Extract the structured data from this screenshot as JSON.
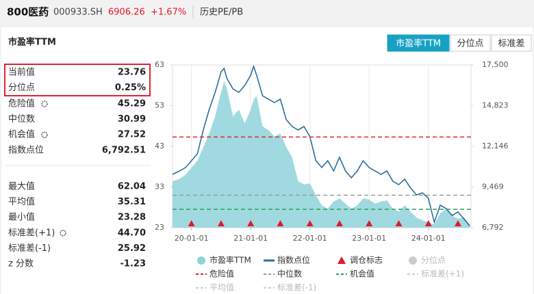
{
  "header": {
    "name": "800医药",
    "code": "000933.SH",
    "price": "6906.26",
    "change": "+1.67%",
    "section": "历史PE/PB"
  },
  "panel_title": "市盈率TTM",
  "tabs": [
    "市盈率TTM",
    "分位点",
    "标准差"
  ],
  "active_tab": 0,
  "stats": [
    {
      "highlight": true,
      "rows": [
        {
          "label": "当前值",
          "value": 23.76
        },
        {
          "label": "分位点",
          "value": "0.25%"
        }
      ]
    },
    {
      "rows": [
        {
          "label": "危险值",
          "value": 45.29,
          "gear": true
        },
        {
          "label": "中位数",
          "value": 30.99
        },
        {
          "label": "机会值",
          "value": 27.52,
          "gear": true
        },
        {
          "label": "指数点位",
          "value": "6,792.51"
        }
      ]
    },
    {
      "rows": [
        {
          "label": "最大值",
          "value": 62.04
        },
        {
          "label": "平均值",
          "value": 35.31
        },
        {
          "label": "最小值",
          "value": 23.28
        },
        {
          "label": "标准差(+1)",
          "value": "44.70",
          "gear": true
        },
        {
          "label": "标准差(-1)",
          "value": 25.92
        },
        {
          "label": "z 分数",
          "value": -1.23
        }
      ]
    }
  ],
  "chart_data": {
    "type": "line",
    "x": [
      2019.68,
      2019.8,
      2019.9,
      2020.0,
      2020.1,
      2020.2,
      2020.3,
      2020.4,
      2020.5,
      2020.55,
      2020.6,
      2020.7,
      2020.8,
      2020.9,
      2021.0,
      2021.05,
      2021.1,
      2021.2,
      2021.3,
      2021.4,
      2021.5,
      2021.6,
      2021.7,
      2021.8,
      2021.9,
      2022.0,
      2022.1,
      2022.2,
      2022.3,
      2022.4,
      2022.5,
      2022.6,
      2022.7,
      2022.8,
      2022.9,
      2023.0,
      2023.1,
      2023.2,
      2023.3,
      2023.4,
      2023.5,
      2023.6,
      2023.7,
      2023.8,
      2023.9,
      2024.0,
      2024.1,
      2024.2,
      2024.3,
      2024.4,
      2024.5,
      2024.6,
      2024.7
    ],
    "series": [
      {
        "name": "市盈率TTM",
        "color": "#8fd3da",
        "fill": true,
        "values": [
          34.4,
          35,
          36,
          37.8,
          39.5,
          42.8,
          46.2,
          50.4,
          56.3,
          59.1,
          57.1,
          50.4,
          52,
          48.7,
          52,
          54.5,
          55.4,
          47.9,
          47,
          45.4,
          46.2,
          42.8,
          40.3,
          34.4,
          33.6,
          33.9,
          31,
          28.5,
          27.7,
          29.4,
          30.2,
          28.9,
          27.7,
          28.5,
          30.2,
          29.9,
          28.9,
          29.4,
          29.7,
          27.7,
          26.9,
          28.5,
          26.9,
          25.5,
          24.8,
          24.3,
          23.8,
          26.5,
          27.7,
          26,
          25.2,
          25.5,
          23.76
        ]
      },
      {
        "name": "指数点位",
        "color": "#2c6e9b",
        "axis": "y2",
        "values": [
          10300,
          10525,
          10750,
          11200,
          11650,
          13225,
          14575,
          15700,
          17050,
          17275,
          16600,
          15925,
          15700,
          16150,
          16825,
          17410,
          16825,
          15475,
          15250,
          15025,
          15250,
          13900,
          13450,
          13225,
          13450,
          12775,
          11200,
          10750,
          11200,
          10525,
          11425,
          10525,
          10075,
          10525,
          11200,
          10750,
          10525,
          10300,
          10525,
          9850,
          9625,
          9985,
          9400,
          8950,
          9085,
          8725,
          7150,
          8275,
          8050,
          7600,
          7825,
          7375,
          6900
        ]
      }
    ],
    "rebalance_x": [
      2020,
      2020.5,
      2021,
      2021.5,
      2022,
      2022.5,
      2023,
      2023.5,
      2024,
      2024.5
    ],
    "rebalance_color": "#e0192a",
    "xlim": [
      2019.68,
      2024.72
    ],
    "xticks": [
      {
        "value": 2020,
        "label": "20-01-01"
      },
      {
        "value": 2021,
        "label": "21-01-01"
      },
      {
        "value": 2022,
        "label": "22-01-01"
      },
      {
        "value": 2023,
        "label": "23-01-01"
      },
      {
        "value": 2024,
        "label": "24-01-01"
      }
    ],
    "ylim": [
      23,
      63
    ],
    "yticks": [
      23,
      33,
      43,
      53,
      63
    ],
    "y2lim": [
      6792,
      17500
    ],
    "y2ticks": [
      {
        "value": 6792,
        "label": "6,792"
      },
      {
        "value": 9469,
        "label": "9,469"
      },
      {
        "value": 12146,
        "label": "12,146"
      },
      {
        "value": 14823,
        "label": "14,823"
      },
      {
        "value": 17500,
        "label": "17,500"
      }
    ],
    "grid": "x",
    "legend_extra": [
      {
        "name": "调仓标志",
        "color": "#e0192a",
        "shape": "triangle"
      },
      {
        "name": "分位点",
        "color": "#cccccc",
        "shape": "circle",
        "off": true
      },
      {
        "name": "危险值",
        "color": "#d9262f",
        "shape": "dash"
      },
      {
        "name": "中位数",
        "color": "#9a9a9a",
        "shape": "dash"
      },
      {
        "name": "机会值",
        "color": "#2a9d5c",
        "shape": "dash"
      },
      {
        "name": "标准差(+1)",
        "color": "#cccccc",
        "shape": "dash",
        "off": true
      },
      {
        "name": "平均值",
        "color": "#cccccc",
        "shape": "dash",
        "off": true
      },
      {
        "name": "标准差(-1)",
        "color": "#cccccc",
        "shape": "dash",
        "off": true
      }
    ]
  }
}
